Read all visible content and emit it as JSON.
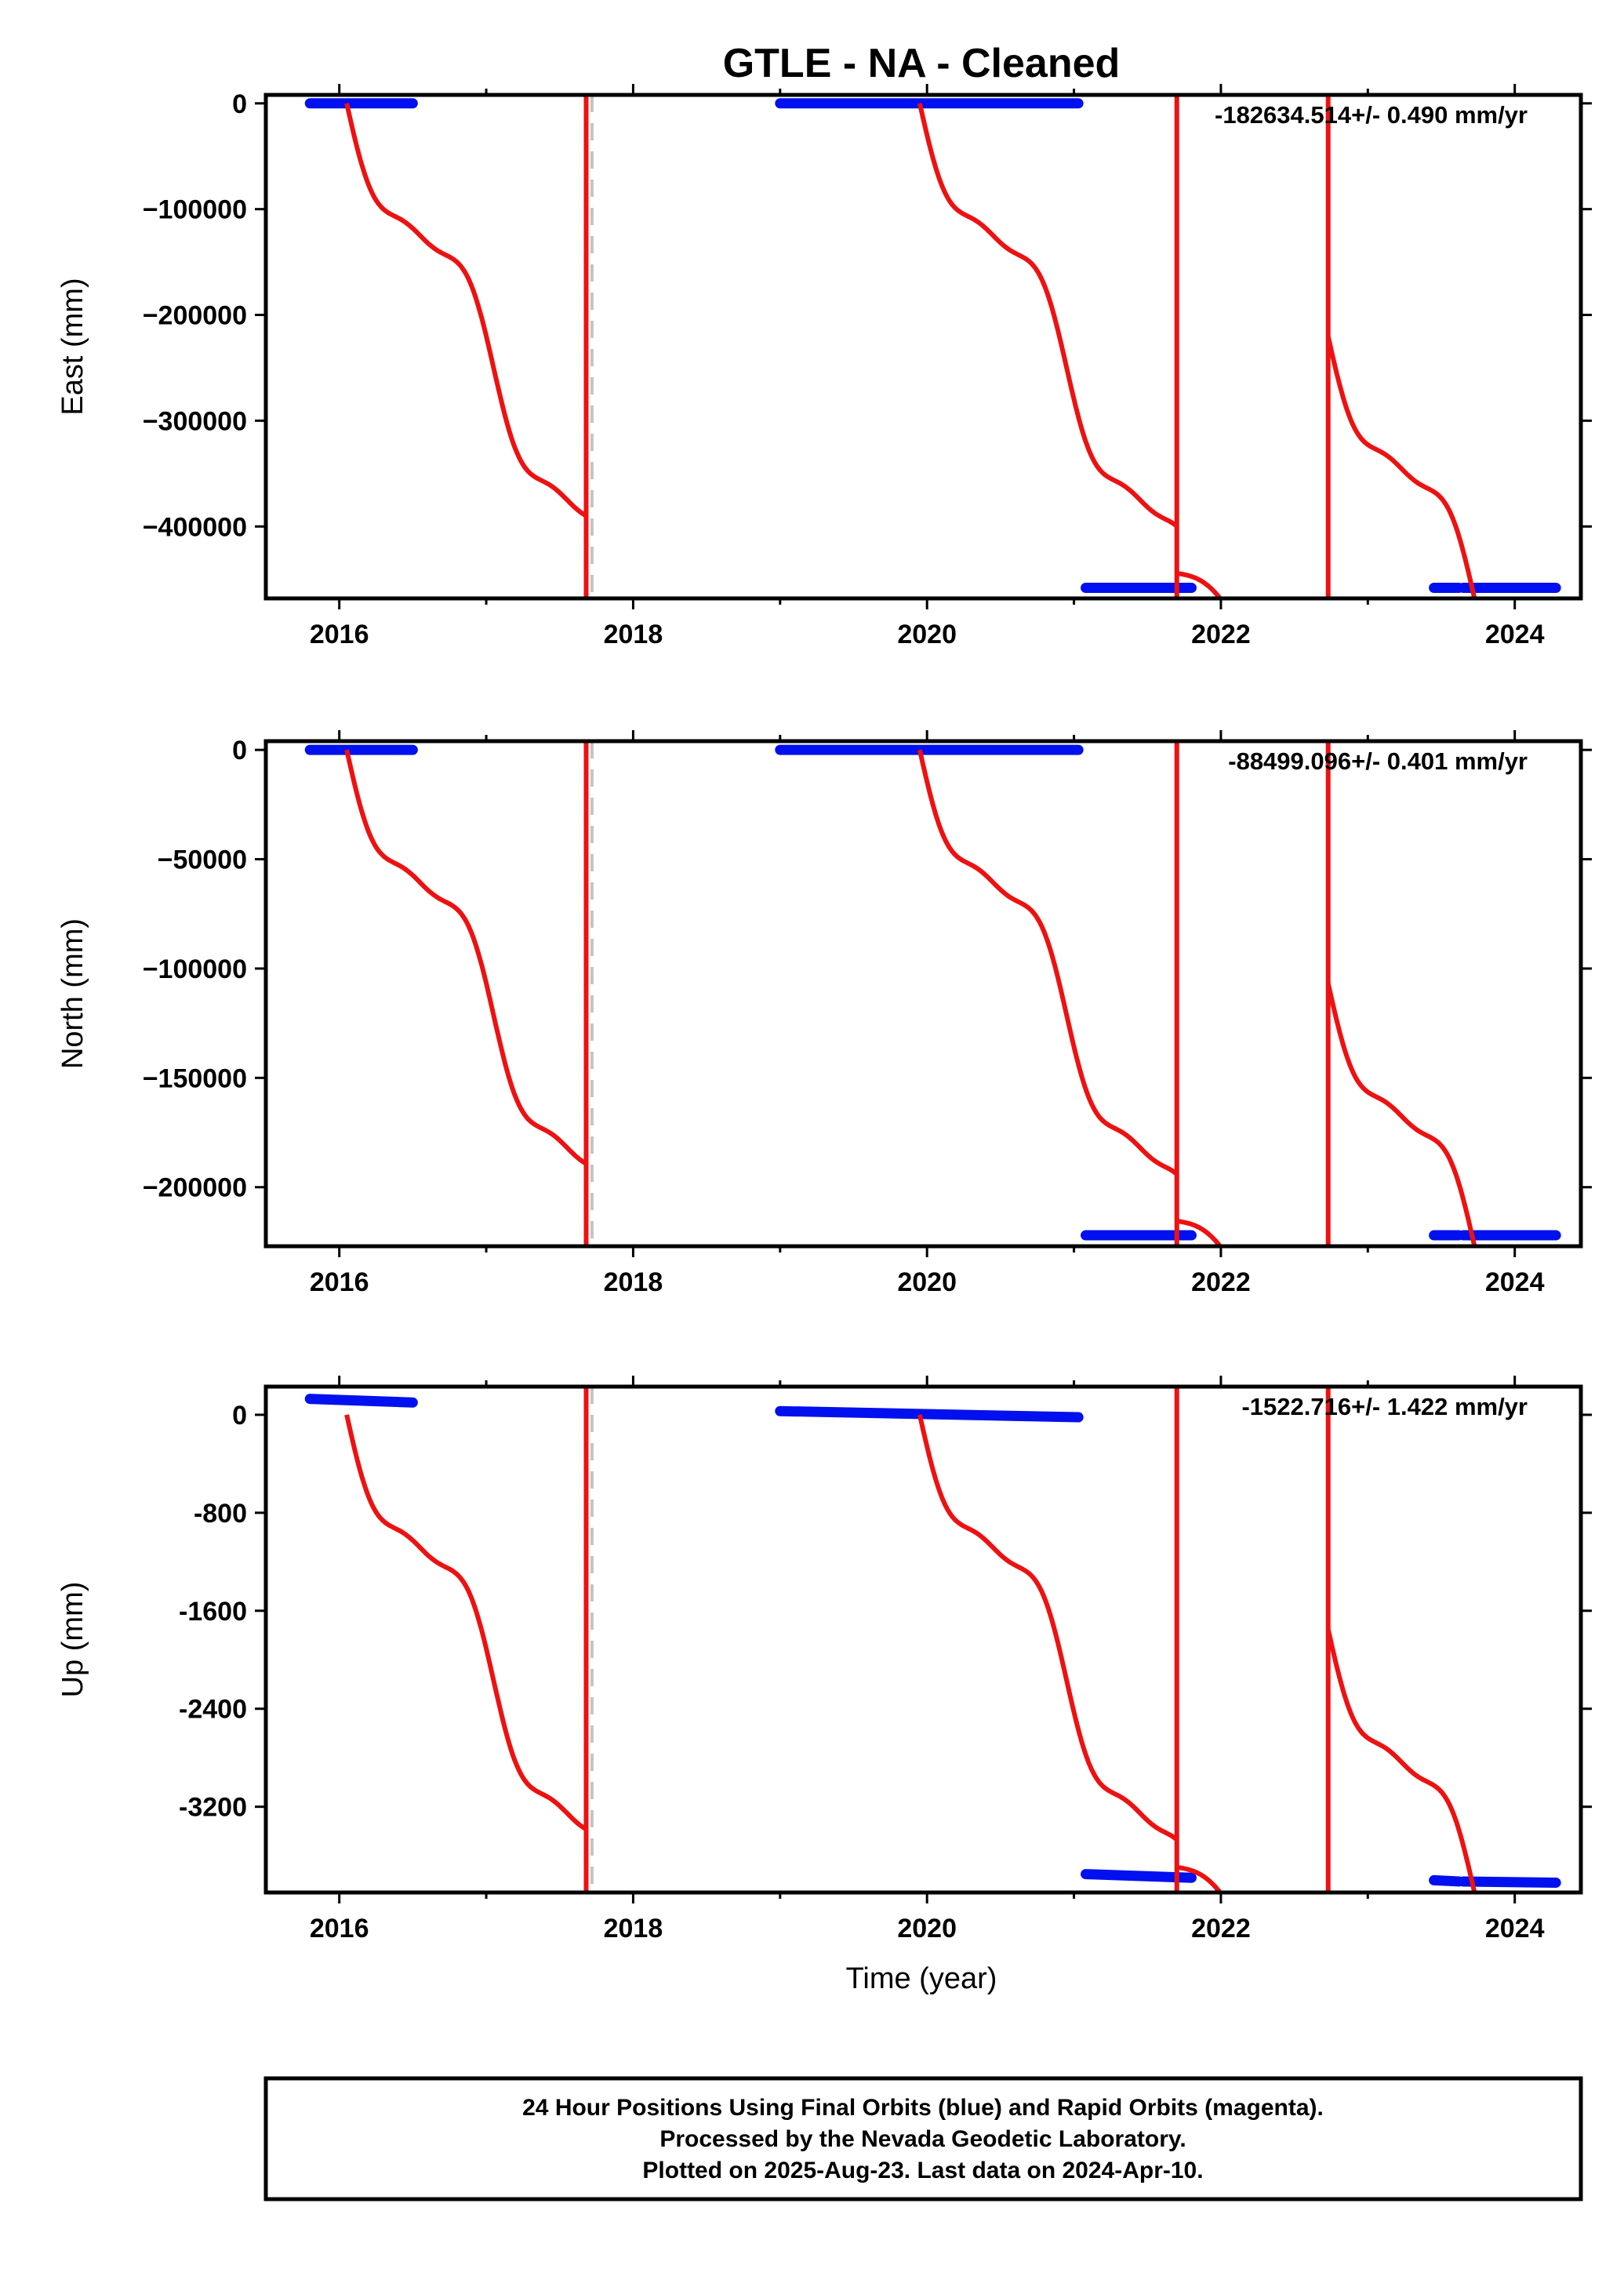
{
  "chart_data": {
    "type": "scatter",
    "title": "GTLE  - NA - Cleaned",
    "xlabel": "Time (year)",
    "xlim": [
      2015.5,
      2024.45
    ],
    "xticks": [
      2016,
      2018,
      2020,
      2022,
      2024
    ],
    "steps": [
      2017.68,
      2017.72,
      2021.7,
      2022.73
    ],
    "panels": [
      {
        "ylabel": "East (mm)",
        "ylim": [
          -468000,
          8000
        ],
        "yticks": [
          0,
          -100000,
          -200000,
          -300000,
          -400000
        ],
        "tick_labels": [
          "0",
          "−100000",
          "−200000",
          "−300000",
          "−400000"
        ],
        "rate_text": "-182634.514+/- 0.490 mm/yr",
        "blue": [
          {
            "x": [
              2015.8,
              2016.5
            ],
            "y": [
              0,
              0
            ]
          },
          {
            "x": [
              2019.0,
              2021.03
            ],
            "y": [
              0,
              0
            ]
          },
          {
            "x": [
              2021.08,
              2021.8
            ],
            "y": [
              -458000,
              -458000
            ]
          },
          {
            "x": [
              2023.45,
              2023.62
            ],
            "y": [
              -458000,
              -458000
            ]
          },
          {
            "x": [
              2023.65,
              2024.28
            ],
            "y": [
              -458000,
              -458000
            ]
          }
        ]
      },
      {
        "ylabel": "North (mm)",
        "ylim": [
          -227000,
          4000
        ],
        "yticks": [
          0,
          -50000,
          -100000,
          -150000,
          -200000
        ],
        "tick_labels": [
          "0",
          "−50000",
          "−100000",
          "−150000",
          "−200000"
        ],
        "rate_text": "-88499.096+/- 0.401 mm/yr",
        "blue": [
          {
            "x": [
              2015.8,
              2016.5
            ],
            "y": [
              0,
              0
            ]
          },
          {
            "x": [
              2019.0,
              2021.03
            ],
            "y": [
              0,
              0
            ]
          },
          {
            "x": [
              2021.08,
              2021.8
            ],
            "y": [
              -222000,
              -222000
            ]
          },
          {
            "x": [
              2023.45,
              2023.62
            ],
            "y": [
              -222000,
              -222000
            ]
          },
          {
            "x": [
              2023.65,
              2024.28
            ],
            "y": [
              -222000,
              -222000
            ]
          }
        ]
      },
      {
        "ylabel": "Up (mm)",
        "ylim": [
          -3900,
          230
        ],
        "yticks": [
          0,
          -800,
          -1600,
          -2400,
          -3200
        ],
        "tick_labels": [
          "0",
          "-800",
          "-1600",
          "-2400",
          "-3200"
        ],
        "rate_text": "-1522.716+/- 1.422 mm/yr",
        "blue": [
          {
            "x": [
              2015.8,
              2016.5
            ],
            "y": [
              130,
              100
            ]
          },
          {
            "x": [
              2019.0,
              2021.03
            ],
            "y": [
              30,
              -20
            ]
          },
          {
            "x": [
              2021.08,
              2021.8
            ],
            "y": [
              -3750,
              -3780
            ]
          },
          {
            "x": [
              2023.45,
              2023.62
            ],
            "y": [
              -3800,
              -3810
            ]
          },
          {
            "x": [
              2023.65,
              2024.28
            ],
            "y": [
              -3810,
              -3820
            ]
          }
        ]
      }
    ],
    "footer": [
      "24 Hour Positions Using Final Orbits (blue) and Rapid Orbits (magenta).",
      "Processed by the Nevada Geodetic Laboratory.",
      "Plotted on 2025-Aug-23. Last data on 2024-Apr-10."
    ]
  }
}
